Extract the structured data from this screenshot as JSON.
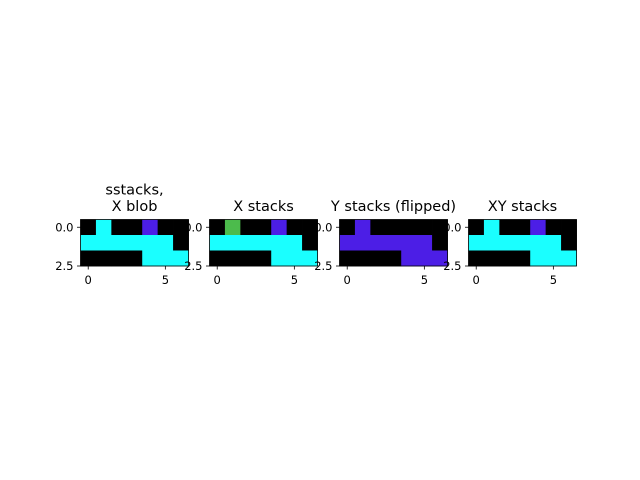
{
  "colors": {
    "background": "#000000",
    "cyan": "#1affff",
    "purple": "#4c1ee6",
    "green": "#4cbb4c",
    "axis": "#000000"
  },
  "chart_data": [
    {
      "type": "heatmap",
      "title_lines": [
        "sstacks,",
        "X blob"
      ],
      "x_ticks": [
        "0",
        "5"
      ],
      "y_ticks": [
        "0.0",
        "2.5"
      ],
      "xlim": [
        -0.5,
        6.5
      ],
      "ylim": [
        2.5,
        -0.5
      ],
      "grid": [
        [
          0,
          1,
          0,
          0,
          2,
          0,
          0
        ],
        [
          1,
          1,
          1,
          1,
          1,
          1,
          0
        ],
        [
          0,
          0,
          0,
          0,
          1,
          1,
          1
        ]
      ],
      "palette": [
        "#000000",
        "#1affff",
        "#4c1ee6"
      ]
    },
    {
      "type": "heatmap",
      "title_lines": [
        "X stacks"
      ],
      "x_ticks": [
        "0",
        "5"
      ],
      "y_ticks": [
        "0.0",
        "2.5"
      ],
      "xlim": [
        -0.5,
        6.5
      ],
      "ylim": [
        2.5,
        -0.5
      ],
      "grid": [
        [
          0,
          3,
          0,
          0,
          2,
          0,
          0
        ],
        [
          1,
          1,
          1,
          1,
          1,
          1,
          0
        ],
        [
          0,
          0,
          0,
          0,
          1,
          1,
          1
        ]
      ],
      "palette": [
        "#000000",
        "#1affff",
        "#4c1ee6",
        "#4cbb4c"
      ]
    },
    {
      "type": "heatmap",
      "title_lines": [
        "Y stacks (flipped)"
      ],
      "x_ticks": [
        "0",
        "5"
      ],
      "y_ticks": [
        "0.0",
        "2.5"
      ],
      "xlim": [
        -0.5,
        6.5
      ],
      "ylim": [
        2.5,
        -0.5
      ],
      "grid": [
        [
          0,
          2,
          0,
          0,
          0,
          0,
          0
        ],
        [
          2,
          2,
          2,
          2,
          2,
          2,
          0
        ],
        [
          0,
          0,
          0,
          0,
          2,
          2,
          2
        ]
      ],
      "palette": [
        "#000000",
        "#1affff",
        "#4c1ee6"
      ]
    },
    {
      "type": "heatmap",
      "title_lines": [
        "XY stacks"
      ],
      "x_ticks": [
        "0",
        "5"
      ],
      "y_ticks": [
        "0.0",
        "2.5"
      ],
      "xlim": [
        -0.5,
        6.5
      ],
      "ylim": [
        2.5,
        -0.5
      ],
      "grid": [
        [
          0,
          1,
          0,
          0,
          2,
          0,
          0
        ],
        [
          1,
          1,
          1,
          1,
          1,
          1,
          0
        ],
        [
          0,
          0,
          0,
          0,
          1,
          1,
          1
        ]
      ],
      "palette": [
        "#000000",
        "#1affff",
        "#4c1ee6"
      ]
    }
  ]
}
